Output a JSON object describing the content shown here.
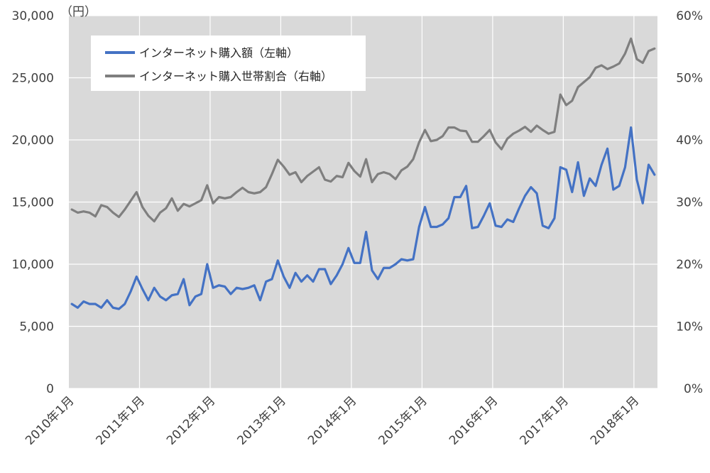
{
  "chart_data": {
    "type": "line",
    "unit_label": "（円）",
    "left_axis": {
      "min": 0,
      "max": 30000,
      "ticks": [
        0,
        5000,
        10000,
        15000,
        20000,
        25000,
        30000
      ],
      "tick_labels": [
        "0",
        "5,000",
        "10,000",
        "15,000",
        "20,000",
        "25,000",
        "30,000"
      ]
    },
    "right_axis": {
      "min": 0,
      "max": 60,
      "ticks": [
        0,
        10,
        20,
        30,
        40,
        50,
        60
      ],
      "tick_labels": [
        "0%",
        "10%",
        "20%",
        "30%",
        "40%",
        "50%",
        "60%"
      ]
    },
    "x_tick_labels": [
      "2010年1月",
      "2011年1月",
      "2012年1月",
      "2013年1月",
      "2014年1月",
      "2015年1月",
      "2016年1月",
      "2017年1月",
      "2018年1月"
    ],
    "x_start": "2010-01",
    "grid": true,
    "legend_position": "top-left",
    "plot_background": "#d9d9d9",
    "series": [
      {
        "name": "インターネット購入額（左軸）",
        "axis": "left",
        "color": "#4472c4",
        "values": [
          6800,
          6500,
          7000,
          6800,
          6800,
          6500,
          7100,
          6500,
          6400,
          6800,
          7800,
          9000,
          8000,
          7100,
          8100,
          7400,
          7100,
          7500,
          7600,
          8800,
          6700,
          7400,
          7600,
          10000,
          8100,
          8300,
          8200,
          7600,
          8100,
          8000,
          8100,
          8300,
          7100,
          8600,
          8800,
          10300,
          9000,
          8100,
          9300,
          8600,
          9100,
          8600,
          9600,
          9600,
          8400,
          9100,
          10000,
          11300,
          10100,
          10100,
          12600,
          9500,
          8800,
          9700,
          9700,
          10000,
          10400,
          10300,
          10400,
          13000,
          14600,
          13000,
          13000,
          13200,
          13700,
          15400,
          15400,
          16300,
          12900,
          13000,
          13900,
          14900,
          13100,
          13000,
          13600,
          13400,
          14500,
          15500,
          16200,
          15700,
          13100,
          12900,
          13700,
          17800,
          17600,
          15800,
          18200,
          15500,
          16900,
          16300,
          18000,
          19300,
          16000,
          16300,
          17800,
          21000,
          16800,
          14900,
          18000,
          17200
        ]
      },
      {
        "name": "インターネット購入世帯割合（右軸）",
        "axis": "right",
        "color": "#7f7f7f",
        "values": [
          28.8,
          28.3,
          28.5,
          28.3,
          27.7,
          29.5,
          29.2,
          28.3,
          27.6,
          28.8,
          30.2,
          31.6,
          29.2,
          27.8,
          26.9,
          28.3,
          29.0,
          30.6,
          28.6,
          29.7,
          29.3,
          29.8,
          30.3,
          32.7,
          29.8,
          30.8,
          30.6,
          30.8,
          31.6,
          32.3,
          31.6,
          31.4,
          31.6,
          32.4,
          34.5,
          36.8,
          35.7,
          34.4,
          34.8,
          33.2,
          34.2,
          34.9,
          35.6,
          33.6,
          33.3,
          34.2,
          34.0,
          36.3,
          35.0,
          34.1,
          36.9,
          33.2,
          34.5,
          34.8,
          34.5,
          33.7,
          35.1,
          35.7,
          36.9,
          39.6,
          41.6,
          39.8,
          40.0,
          40.6,
          42.0,
          42.0,
          41.5,
          41.4,
          39.7,
          39.7,
          40.6,
          41.6,
          39.6,
          38.5,
          40.2,
          41.0,
          41.5,
          42.1,
          41.3,
          42.3,
          41.6,
          41.0,
          41.3,
          47.3,
          45.6,
          46.3,
          48.5,
          49.3,
          50.1,
          51.6,
          52.0,
          51.4,
          51.8,
          52.3,
          53.9,
          56.3,
          53.0,
          52.4,
          54.3,
          54.7
        ]
      }
    ]
  }
}
